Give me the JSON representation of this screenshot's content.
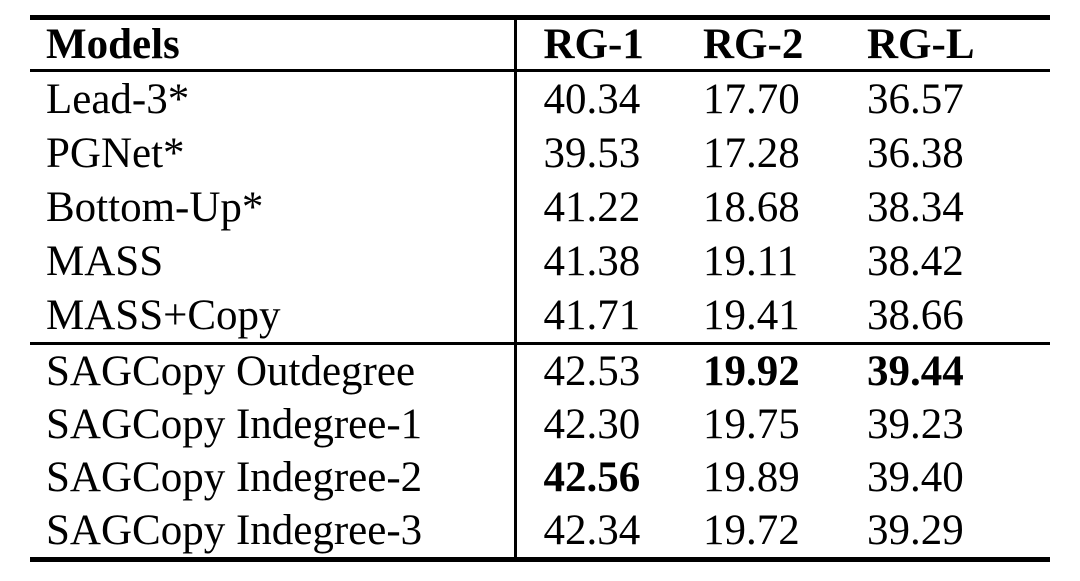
{
  "table": {
    "header": {
      "cells": [
        {
          "text": "Models",
          "bold": true
        },
        {
          "text": "RG-1",
          "bold": true
        },
        {
          "text": "RG-2",
          "bold": true
        },
        {
          "text": "RG-L",
          "bold": true
        }
      ]
    },
    "groups": [
      {
        "name": "baselines",
        "rows": [
          {
            "cells": [
              {
                "text": "Lead-3*",
                "bold": false
              },
              {
                "text": "40.34",
                "bold": false
              },
              {
                "text": "17.70",
                "bold": false
              },
              {
                "text": "36.57",
                "bold": false
              }
            ]
          },
          {
            "cells": [
              {
                "text": "PGNet*",
                "bold": false
              },
              {
                "text": "39.53",
                "bold": false
              },
              {
                "text": "17.28",
                "bold": false
              },
              {
                "text": "36.38",
                "bold": false
              }
            ]
          },
          {
            "cells": [
              {
                "text": "Bottom-Up*",
                "bold": false
              },
              {
                "text": "41.22",
                "bold": false
              },
              {
                "text": "18.68",
                "bold": false
              },
              {
                "text": "38.34",
                "bold": false
              }
            ]
          },
          {
            "cells": [
              {
                "text": "MASS",
                "bold": false
              },
              {
                "text": "41.38",
                "bold": false
              },
              {
                "text": "19.11",
                "bold": false
              },
              {
                "text": "38.42",
                "bold": false
              }
            ]
          },
          {
            "cells": [
              {
                "text": "MASS+Copy",
                "bold": false
              },
              {
                "text": "41.71",
                "bold": false
              },
              {
                "text": "19.41",
                "bold": false
              },
              {
                "text": "38.66",
                "bold": false
              }
            ]
          }
        ]
      },
      {
        "name": "sagcopy",
        "rows": [
          {
            "cells": [
              {
                "text": "SAGCopy Outdegree",
                "bold": false
              },
              {
                "text": "42.53",
                "bold": false
              },
              {
                "text": "19.92",
                "bold": true
              },
              {
                "text": "39.44",
                "bold": true
              }
            ]
          },
          {
            "cells": [
              {
                "text": "SAGCopy Indegree-1",
                "bold": false
              },
              {
                "text": "42.30",
                "bold": false
              },
              {
                "text": "19.75",
                "bold": false
              },
              {
                "text": "39.23",
                "bold": false
              }
            ]
          },
          {
            "cells": [
              {
                "text": "SAGCopy Indegree-2",
                "bold": false
              },
              {
                "text": "42.56",
                "bold": true
              },
              {
                "text": "19.89",
                "bold": false
              },
              {
                "text": "39.40",
                "bold": false
              }
            ]
          },
          {
            "cells": [
              {
                "text": "SAGCopy Indegree-3",
                "bold": false
              },
              {
                "text": "42.34",
                "bold": false
              },
              {
                "text": "19.72",
                "bold": false
              },
              {
                "text": "39.29",
                "bold": false
              }
            ]
          }
        ]
      }
    ],
    "colors": {
      "text": "#000000",
      "background": "#ffffff",
      "rule": "#000000"
    }
  }
}
